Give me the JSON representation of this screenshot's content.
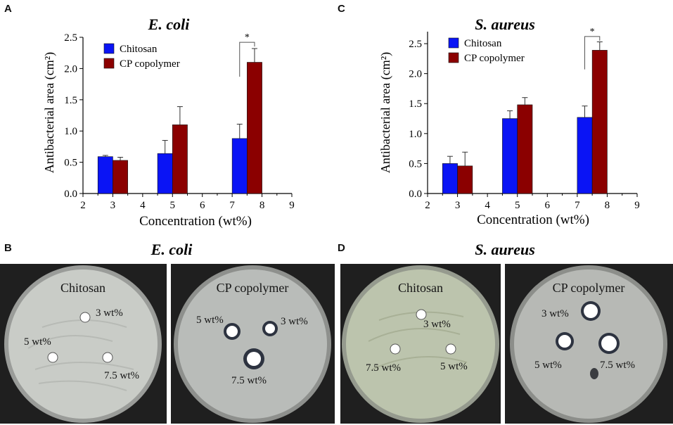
{
  "charts": [
    {
      "panel_label": "A",
      "chart_data": {
        "type": "bar",
        "title": "E. coli",
        "xlabel": "Concentration (wt%)",
        "ylabel": "Antibacterial area (cm²)",
        "xlim": [
          2,
          9
        ],
        "ylim": [
          0.0,
          2.5
        ],
        "x_ticks": [
          "2",
          "3",
          "4",
          "5",
          "6",
          "7",
          "8",
          "9"
        ],
        "y_ticks": [
          "0.0",
          "0.5",
          "1.0",
          "1.5",
          "2.0",
          "2.5"
        ],
        "legend_position": "top-left",
        "grid": false,
        "series": [
          {
            "name": "Chitosan",
            "color": "#0a14f5",
            "x": [
              2.5,
              4.5,
              7.0
            ],
            "values": [
              0.59,
              0.64,
              0.88
            ],
            "errors": [
              0.02,
              0.21,
              0.23
            ]
          },
          {
            "name": "CP copolymer",
            "color": "#8b0000",
            "x": [
              3.0,
              5.0,
              7.5
            ],
            "values": [
              0.53,
              1.1,
              2.1
            ],
            "errors": [
              0.05,
              0.29,
              0.22
            ]
          }
        ],
        "annotations": [
          {
            "text": "*",
            "x1": 7.0,
            "x2": 7.5,
            "y": 2.42
          }
        ]
      }
    },
    {
      "panel_label": "C",
      "chart_data": {
        "type": "bar",
        "title": "S. aureus",
        "xlabel": "Concentration (wt%)",
        "ylabel": "Antibacterial area (cm²)",
        "xlim": [
          2,
          9
        ],
        "ylim": [
          0.0,
          2.7
        ],
        "x_ticks": [
          "2",
          "3",
          "4",
          "5",
          "6",
          "7",
          "8",
          "9"
        ],
        "y_ticks": [
          "0.0",
          "0.5",
          "1.0",
          "1.5",
          "2.0",
          "2.5"
        ],
        "legend_position": "top-left",
        "grid": false,
        "series": [
          {
            "name": "Chitosan",
            "color": "#0a14f5",
            "x": [
              2.5,
              4.5,
              7.0
            ],
            "values": [
              0.5,
              1.25,
              1.27
            ],
            "errors": [
              0.12,
              0.13,
              0.19
            ]
          },
          {
            "name": "CP copolymer",
            "color": "#8b0000",
            "x": [
              3.0,
              5.0,
              7.5
            ],
            "values": [
              0.46,
              1.48,
              2.39
            ],
            "errors": [
              0.23,
              0.12,
              0.14
            ]
          }
        ],
        "annotations": [
          {
            "text": "*",
            "x1": 7.0,
            "x2": 7.5,
            "y": 2.62
          }
        ]
      }
    }
  ],
  "photos": [
    {
      "panel_label": "B",
      "title": "E. coli",
      "plates": [
        {
          "label": "Chitosan",
          "agar": "#c9ccc7",
          "wells": [
            "3 wt%",
            "5 wt%",
            "7.5 wt%"
          ]
        },
        {
          "label": "CP copolymer",
          "agar": "#b9bcb9",
          "wells": [
            "5 wt%",
            "3 wt%",
            "7.5 wt%"
          ]
        }
      ]
    },
    {
      "panel_label": "D",
      "title": "S. aureus",
      "plates": [
        {
          "label": "Chitosan",
          "agar": "#bcc4ad",
          "wells": [
            "3 wt%",
            "7.5 wt%",
            "5 wt%"
          ]
        },
        {
          "label": "CP copolymer",
          "agar": "#b7b9b5",
          "wells": [
            "3 wt%",
            "5 wt%",
            "7.5 wt%"
          ]
        }
      ]
    }
  ]
}
